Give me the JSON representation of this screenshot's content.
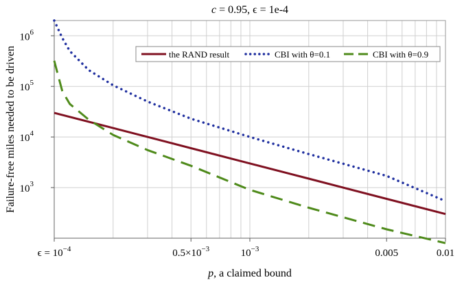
{
  "chart_data": {
    "type": "line",
    "title_var": "c",
    "title_rest": " = 0.95, ϵ = 1e-4",
    "xlabel_var": "p",
    "xlabel_rest": ", a claimed bound",
    "ylabel": "Failure-free miles needed to be driven",
    "x_scale": "log",
    "y_scale": "log",
    "xlim": [
      0.0001,
      0.01
    ],
    "ylim": [
      100,
      2000000
    ],
    "grid": true,
    "legend_position": "top-right",
    "x_ticks": [
      {
        "value": 0.0001,
        "label": "ϵ = 10",
        "sup": "−4"
      },
      {
        "value": 0.0005,
        "label": "0.5×10",
        "sup": "−3"
      },
      {
        "value": 0.001,
        "label": "10",
        "sup": "−3"
      },
      {
        "value": 0.005,
        "label": "0.005",
        "sup": ""
      },
      {
        "value": 0.01,
        "label": "0.01",
        "sup": ""
      }
    ],
    "y_ticks": [
      {
        "value": 1000,
        "label": "10",
        "sup": "3"
      },
      {
        "value": 10000,
        "label": "10",
        "sup": "4"
      },
      {
        "value": 100000,
        "label": "10",
        "sup": "5"
      },
      {
        "value": 1000000,
        "label": "10",
        "sup": "6"
      }
    ],
    "series": [
      {
        "name": "the RAND result",
        "color": "#7f1020",
        "style": "solid",
        "x": [
          0.0001,
          0.0002,
          0.0005,
          0.001,
          0.002,
          0.005,
          0.01
        ],
        "y": [
          30000,
          15000,
          6000,
          3000,
          1500,
          600,
          300
        ]
      },
      {
        "name": "CBI with θ=0.1",
        "color": "#1f2f9f",
        "style": "dotted",
        "x": [
          0.0001,
          0.00011,
          0.00012,
          0.00015,
          0.0002,
          0.0003,
          0.0005,
          0.001,
          0.002,
          0.005,
          0.01
        ],
        "y": [
          2000000,
          900000,
          500000,
          210000,
          105000,
          50000,
          23000,
          10000,
          4600,
          1700,
          540
        ]
      },
      {
        "name": "CBI with θ=0.9",
        "color": "#4e8a1a",
        "style": "dashed",
        "x": [
          0.0001,
          0.00011,
          0.00012,
          0.00015,
          0.0002,
          0.0003,
          0.0005,
          0.001,
          0.002,
          0.005,
          0.01
        ],
        "y": [
          320000,
          80000,
          45000,
          22000,
          11000,
          5500,
          2700,
          900,
          400,
          150,
          80
        ]
      }
    ]
  }
}
